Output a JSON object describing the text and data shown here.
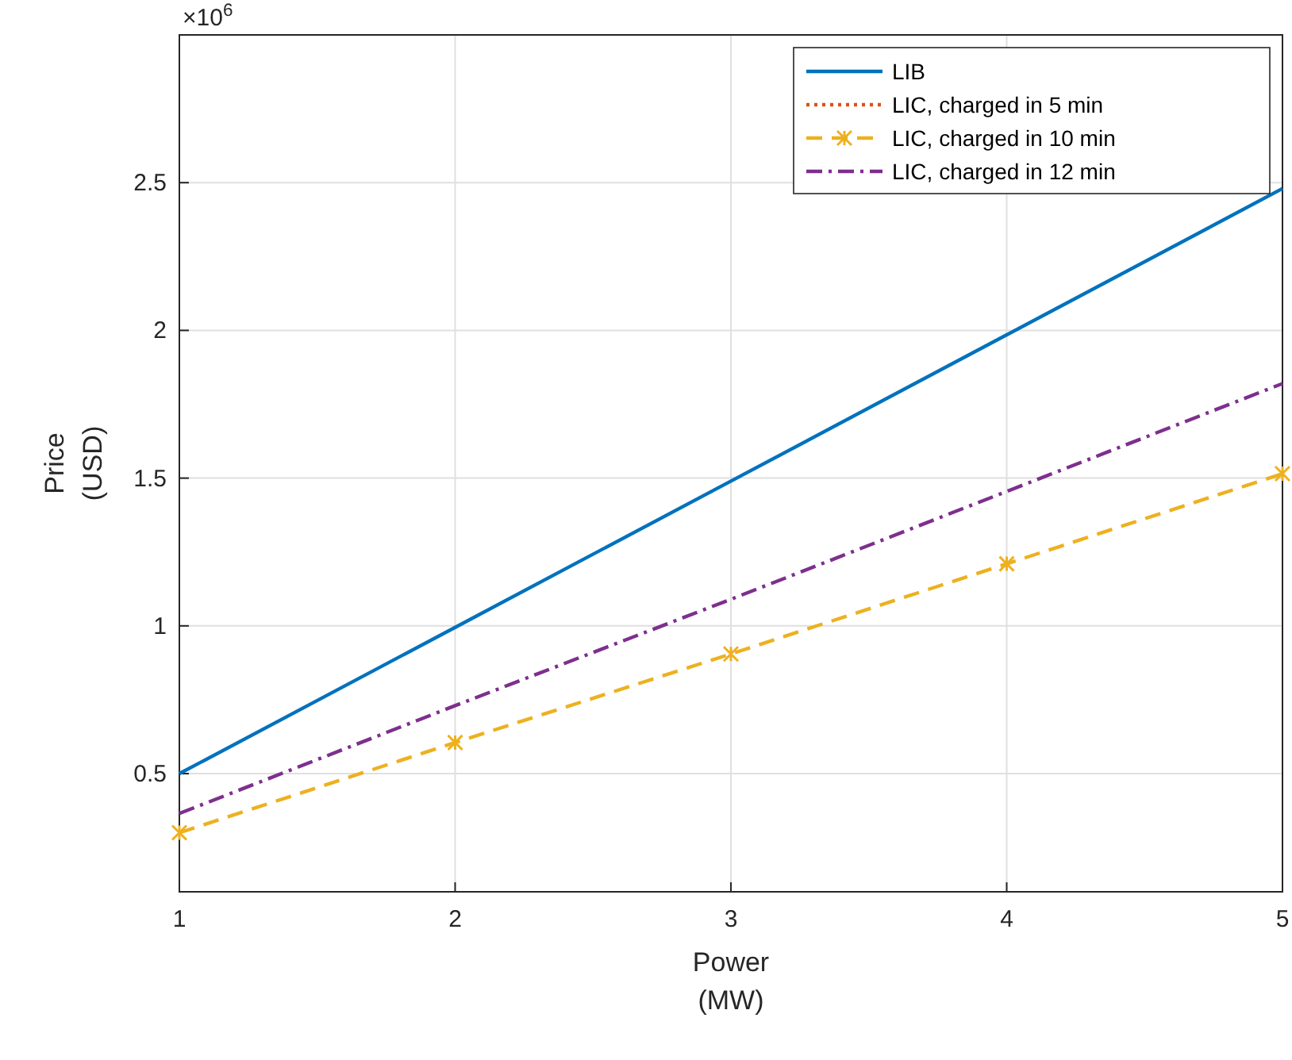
{
  "chart_data": {
    "type": "line",
    "xlabel": "Power\n(MW)",
    "ylabel": "Price\n(USD)",
    "x": [
      1,
      2,
      3,
      4,
      5
    ],
    "series": [
      {
        "name": "LIB",
        "color": "#0072bd",
        "line_style": "solid",
        "marker": "none",
        "values": [
          0.5,
          0.995,
          1.49,
          1.985,
          2.48
        ]
      },
      {
        "name": "LIC, charged in 5 min",
        "color": "#d95319",
        "line_style": "dotted",
        "marker": "none",
        "values": [
          null,
          null,
          null,
          null,
          null
        ]
      },
      {
        "name": "LIC, charged in 10 min",
        "color": "#edb120",
        "line_style": "dashed",
        "marker": "cross",
        "values": [
          0.3,
          0.605,
          0.905,
          1.21,
          1.515
        ]
      },
      {
        "name": "LIC, charged in 12 min",
        "color": "#7e2f8e",
        "line_style": "dashdot",
        "marker": "none",
        "values": [
          0.365,
          0.73,
          1.09,
          1.455,
          1.82
        ]
      }
    ],
    "xlim": [
      1,
      5
    ],
    "xticks": [
      1,
      2,
      3,
      4,
      5
    ],
    "ylim": [
      0.1,
      3.0
    ],
    "yticks": [
      0.5,
      1,
      1.5,
      2,
      2.5
    ],
    "annotations": [
      "×10$^{6}$"
    ],
    "grid": true,
    "legend": "top right"
  }
}
